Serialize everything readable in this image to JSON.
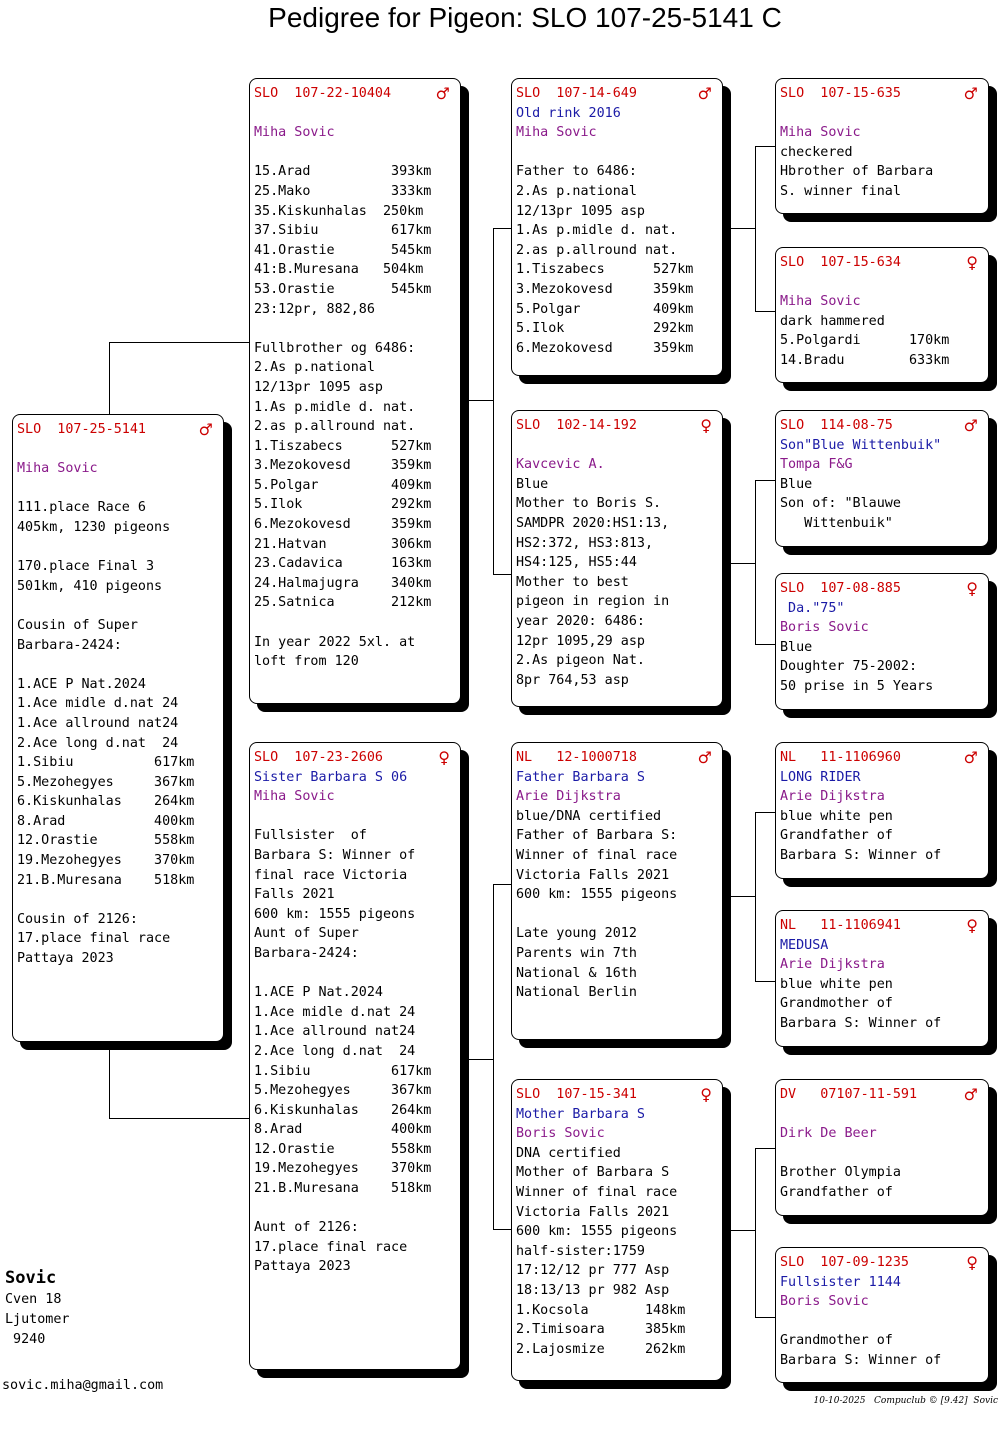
{
  "title": "Pedigree for Pigeon: SLO 107-25-5141 C",
  "owner": {
    "name": "Sovic",
    "lines": [
      "Cven 18",
      "Ljutomer",
      " 9240"
    ]
  },
  "email": "sovic.miha@gmail.com",
  "footer": "10-10-2025   Compuclub © [9.42]  Sovic",
  "cards": {
    "subject": {
      "ring": "SLO  107-25-5141",
      "sex": "♂",
      "lines": [
        {
          "t": "",
          "c": "black"
        },
        {
          "t": "Miha Sovic",
          "c": "purple"
        },
        {
          "t": "",
          "c": "black"
        },
        {
          "t": "111.place Race 6",
          "c": "black"
        },
        {
          "t": "405km, 1230 pigeons",
          "c": "black"
        },
        {
          "t": "",
          "c": "black"
        },
        {
          "t": "170.place Final 3",
          "c": "black"
        },
        {
          "t": "501km, 410 pigeons",
          "c": "black"
        },
        {
          "t": "",
          "c": "black"
        },
        {
          "t": "Cousin of Super",
          "c": "black"
        },
        {
          "t": "Barbara-2424:",
          "c": "black"
        },
        {
          "t": "",
          "c": "black"
        },
        {
          "t": "1.ACE P Nat.2024",
          "c": "black"
        },
        {
          "t": "1.Ace midle d.nat 24",
          "c": "black"
        },
        {
          "t": "1.Ace allround nat24",
          "c": "black"
        },
        {
          "t": "2.Ace long d.nat  24",
          "c": "black"
        },
        {
          "t": "1.Sibiu          617km",
          "c": "black"
        },
        {
          "t": "5.Mezohegyes     367km",
          "c": "black"
        },
        {
          "t": "6.Kiskunhalas    264km",
          "c": "black"
        },
        {
          "t": "8.Arad           400km",
          "c": "black"
        },
        {
          "t": "12.Orastie       558km",
          "c": "black"
        },
        {
          "t": "19.Mezohegyes    370km",
          "c": "black"
        },
        {
          "t": "21.B.Muresana    518km",
          "c": "black"
        },
        {
          "t": "",
          "c": "black"
        },
        {
          "t": "Cousin of 2126:",
          "c": "black"
        },
        {
          "t": "17.place final race",
          "c": "black"
        },
        {
          "t": "Pattaya 2023",
          "c": "black"
        }
      ]
    },
    "sire": {
      "ring": "SLO  107-22-10404",
      "sex": "♂",
      "lines": [
        {
          "t": "",
          "c": "black"
        },
        {
          "t": "Miha Sovic",
          "c": "purple"
        },
        {
          "t": "",
          "c": "black"
        },
        {
          "t": "15.Arad          393km",
          "c": "black"
        },
        {
          "t": "25.Mako          333km",
          "c": "black"
        },
        {
          "t": "35.Kiskunhalas  250km",
          "c": "black"
        },
        {
          "t": "37.Sibiu         617km",
          "c": "black"
        },
        {
          "t": "41.Orastie       545km",
          "c": "black"
        },
        {
          "t": "41:B.Muresana   504km",
          "c": "black"
        },
        {
          "t": "53.Orastie       545km",
          "c": "black"
        },
        {
          "t": "23:12pr, 882,86",
          "c": "black"
        },
        {
          "t": "",
          "c": "black"
        },
        {
          "t": "Fullbrother og 6486:",
          "c": "black"
        },
        {
          "t": "2.As p.national",
          "c": "black"
        },
        {
          "t": "12/13pr 1095 asp",
          "c": "black"
        },
        {
          "t": "1.As p.midle d. nat.",
          "c": "black"
        },
        {
          "t": "2.as p.allround nat.",
          "c": "black"
        },
        {
          "t": "1.Tiszabecs      527km",
          "c": "black"
        },
        {
          "t": "3.Mezokovesd     359km",
          "c": "black"
        },
        {
          "t": "5.Polgar         409km",
          "c": "black"
        },
        {
          "t": "5.Ilok           292km",
          "c": "black"
        },
        {
          "t": "6.Mezokovesd     359km",
          "c": "black"
        },
        {
          "t": "21.Hatvan        306km",
          "c": "black"
        },
        {
          "t": "23.Cadavica      163km",
          "c": "black"
        },
        {
          "t": "24.Halmajugra    340km",
          "c": "black"
        },
        {
          "t": "25.Satnica       212km",
          "c": "black"
        },
        {
          "t": "",
          "c": "black"
        },
        {
          "t": "In year 2022 5xl. at",
          "c": "black"
        },
        {
          "t": "loft from 120",
          "c": "black"
        }
      ]
    },
    "dam": {
      "ring": "SLO  107-23-2606",
      "sex": "♀",
      "lines": [
        {
          "t": "Sister Barbara S 06",
          "c": "blue"
        },
        {
          "t": "Miha Sovic",
          "c": "purple"
        },
        {
          "t": "",
          "c": "black"
        },
        {
          "t": "Fullsister  of",
          "c": "black"
        },
        {
          "t": "Barbara S: Winner of",
          "c": "black"
        },
        {
          "t": "final race Victoria",
          "c": "black"
        },
        {
          "t": "Falls 2021",
          "c": "black"
        },
        {
          "t": "600 km: 1555 pigeons",
          "c": "black"
        },
        {
          "t": "Aunt of Super",
          "c": "black"
        },
        {
          "t": "Barbara-2424:",
          "c": "black"
        },
        {
          "t": "",
          "c": "black"
        },
        {
          "t": "1.ACE P Nat.2024",
          "c": "black"
        },
        {
          "t": "1.Ace midle d.nat 24",
          "c": "black"
        },
        {
          "t": "1.Ace allround nat24",
          "c": "black"
        },
        {
          "t": "2.Ace long d.nat  24",
          "c": "black"
        },
        {
          "t": "1.Sibiu          617km",
          "c": "black"
        },
        {
          "t": "5.Mezohegyes     367km",
          "c": "black"
        },
        {
          "t": "6.Kiskunhalas    264km",
          "c": "black"
        },
        {
          "t": "8.Arad           400km",
          "c": "black"
        },
        {
          "t": "12.Orastie       558km",
          "c": "black"
        },
        {
          "t": "19.Mezohegyes    370km",
          "c": "black"
        },
        {
          "t": "21.B.Muresana    518km",
          "c": "black"
        },
        {
          "t": "",
          "c": "black"
        },
        {
          "t": "Aunt of 2126:",
          "c": "black"
        },
        {
          "t": "17.place final race",
          "c": "black"
        },
        {
          "t": "Pattaya 2023",
          "c": "black"
        }
      ]
    },
    "ss": {
      "ring": "SLO  107-14-649",
      "sex": "♂",
      "lines": [
        {
          "t": "Old rink 2016",
          "c": "blue"
        },
        {
          "t": "Miha Sovic",
          "c": "purple"
        },
        {
          "t": "",
          "c": "black"
        },
        {
          "t": "Father to 6486:",
          "c": "black"
        },
        {
          "t": "2.As p.national",
          "c": "black"
        },
        {
          "t": "12/13pr 1095 asp",
          "c": "black"
        },
        {
          "t": "1.As p.midle d. nat.",
          "c": "black"
        },
        {
          "t": "2.as p.allround nat.",
          "c": "black"
        },
        {
          "t": "1.Tiszabecs      527km",
          "c": "black"
        },
        {
          "t": "3.Mezokovesd     359km",
          "c": "black"
        },
        {
          "t": "5.Polgar         409km",
          "c": "black"
        },
        {
          "t": "5.Ilok           292km",
          "c": "black"
        },
        {
          "t": "6.Mezokovesd     359km",
          "c": "black"
        }
      ]
    },
    "sd": {
      "ring": "SLO  102-14-192",
      "sex": "♀",
      "lines": [
        {
          "t": "",
          "c": "black"
        },
        {
          "t": "Kavcevic A.",
          "c": "purple"
        },
        {
          "t": "Blue",
          "c": "black"
        },
        {
          "t": "Mother to Boris S.",
          "c": "black"
        },
        {
          "t": "SAMDPR 2020:HS1:13,",
          "c": "black"
        },
        {
          "t": "HS2:372, HS3:813,",
          "c": "black"
        },
        {
          "t": "HS4:125, HS5:44",
          "c": "black"
        },
        {
          "t": "Mother to best",
          "c": "black"
        },
        {
          "t": "pigeon in region in",
          "c": "black"
        },
        {
          "t": "year 2020: 6486:",
          "c": "black"
        },
        {
          "t": "12pr 1095,29 asp",
          "c": "black"
        },
        {
          "t": "2.As pigeon Nat.",
          "c": "black"
        },
        {
          "t": "8pr 764,53 asp",
          "c": "black"
        }
      ]
    },
    "ds": {
      "ring": "NL   12-1000718",
      "sex": "♂",
      "lines": [
        {
          "t": "Father Barbara S",
          "c": "blue"
        },
        {
          "t": "Arie Dijkstra",
          "c": "purple"
        },
        {
          "t": "blue/DNA certified",
          "c": "black"
        },
        {
          "t": "Father of Barbara S:",
          "c": "black"
        },
        {
          "t": "Winner of final race",
          "c": "black"
        },
        {
          "t": "Victoria Falls 2021",
          "c": "black"
        },
        {
          "t": "600 km: 1555 pigeons",
          "c": "black"
        },
        {
          "t": "",
          "c": "black"
        },
        {
          "t": "Late young 2012",
          "c": "black"
        },
        {
          "t": "Parents win 7th",
          "c": "black"
        },
        {
          "t": "National & 16th",
          "c": "black"
        },
        {
          "t": "National Berlin",
          "c": "black"
        }
      ]
    },
    "dd": {
      "ring": "SLO  107-15-341",
      "sex": "♀",
      "lines": [
        {
          "t": "Mother Barbara S",
          "c": "blue"
        },
        {
          "t": "Boris Sovic",
          "c": "purple"
        },
        {
          "t": "DNA certified",
          "c": "black"
        },
        {
          "t": "Mother of Barbara S",
          "c": "black"
        },
        {
          "t": "Winner of final race",
          "c": "black"
        },
        {
          "t": "Victoria Falls 2021",
          "c": "black"
        },
        {
          "t": "600 km: 1555 pigeons",
          "c": "black"
        },
        {
          "t": "half-sister:1759",
          "c": "black"
        },
        {
          "t": "17:12/12 pr 777 Asp",
          "c": "black"
        },
        {
          "t": "18:13/13 pr 982 Asp",
          "c": "black"
        },
        {
          "t": "1.Kocsola       148km",
          "c": "black"
        },
        {
          "t": "2.Timisoara     385km",
          "c": "black"
        },
        {
          "t": "2.Lajosmize     262km",
          "c": "black"
        }
      ]
    },
    "sss": {
      "ring": "SLO  107-15-635",
      "sex": "♂",
      "lines": [
        {
          "t": "",
          "c": "black"
        },
        {
          "t": "Miha Sovic",
          "c": "purple"
        },
        {
          "t": "checkered",
          "c": "black"
        },
        {
          "t": "Hbrother of Barbara",
          "c": "black"
        },
        {
          "t": "S. winner final",
          "c": "black"
        }
      ]
    },
    "ssd": {
      "ring": "SLO  107-15-634",
      "sex": "♀",
      "lines": [
        {
          "t": "",
          "c": "black"
        },
        {
          "t": "Miha Sovic",
          "c": "purple"
        },
        {
          "t": "dark hammered",
          "c": "black"
        },
        {
          "t": "5.Polgardi      170km",
          "c": "black"
        },
        {
          "t": "14.Bradu        633km",
          "c": "black"
        }
      ]
    },
    "sds": {
      "ring": "SLO  114-08-75",
      "sex": "♂",
      "lines": [
        {
          "t": "Son\"Blue Wittenbuik\"",
          "c": "blue"
        },
        {
          "t": "Tompa F&G",
          "c": "purple"
        },
        {
          "t": "Blue",
          "c": "black"
        },
        {
          "t": "Son of: \"Blauwe",
          "c": "black"
        },
        {
          "t": "   Wittenbuik\"",
          "c": "black"
        }
      ]
    },
    "sdd": {
      "ring": "SLO  107-08-885",
      "sex": "♀",
      "lines": [
        {
          "t": " Da.\"75\"",
          "c": "blue"
        },
        {
          "t": "Boris Sovic",
          "c": "purple"
        },
        {
          "t": "Blue",
          "c": "black"
        },
        {
          "t": "Doughter 75-2002:",
          "c": "black"
        },
        {
          "t": "50 prise in 5 Years",
          "c": "black"
        }
      ]
    },
    "dss": {
      "ring": "NL   11-1106960",
      "sex": "♂",
      "lines": [
        {
          "t": "LONG RIDER",
          "c": "blue"
        },
        {
          "t": "Arie Dijkstra",
          "c": "purple"
        },
        {
          "t": "blue white pen",
          "c": "black"
        },
        {
          "t": "Grandfather of",
          "c": "black"
        },
        {
          "t": "Barbara S: Winner of",
          "c": "black"
        }
      ]
    },
    "dsd": {
      "ring": "NL   11-1106941",
      "sex": "♀",
      "lines": [
        {
          "t": "MEDUSA",
          "c": "blue"
        },
        {
          "t": "Arie Dijkstra",
          "c": "purple"
        },
        {
          "t": "blue white pen",
          "c": "black"
        },
        {
          "t": "Grandmother of",
          "c": "black"
        },
        {
          "t": "Barbara S: Winner of",
          "c": "black"
        }
      ]
    },
    "dds": {
      "ring": "DV   07107-11-591",
      "sex": "♂",
      "lines": [
        {
          "t": "",
          "c": "black"
        },
        {
          "t": "Dirk De Beer",
          "c": "purple"
        },
        {
          "t": "",
          "c": "black"
        },
        {
          "t": "Brother Olympia",
          "c": "black"
        },
        {
          "t": "Grandfather of",
          "c": "black"
        }
      ]
    },
    "ddd": {
      "ring": "SLO  107-09-1235",
      "sex": "♀",
      "lines": [
        {
          "t": "Fullsister 1144",
          "c": "blue"
        },
        {
          "t": "Boris Sovic",
          "c": "purple"
        },
        {
          "t": "",
          "c": "black"
        },
        {
          "t": "Grandmother of",
          "c": "black"
        },
        {
          "t": "Barbara S: Winner of",
          "c": "black"
        }
      ]
    }
  }
}
